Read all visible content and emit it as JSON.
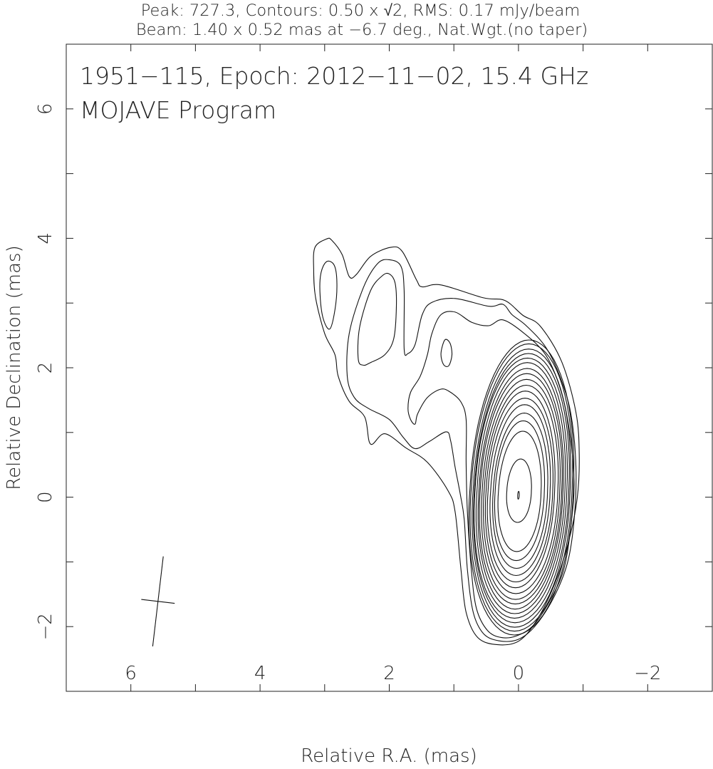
{
  "chart_data": {
    "type": "contour",
    "header_line1": "Peak: 727.3, Contours: 0.50 x √2, RMS: 0.17 mJy/beam",
    "header_line2": "Beam: 1.40 x 0.52 mas at −6.7 deg., Nat.Wgt.(no taper)",
    "title": "1951−115, Epoch: 2012−11−02, 15.4 GHz",
    "subtitle": "MOJAVE Program",
    "xlabel": "Relative R.A. (mas)",
    "ylabel": "Relative Declination (mas)",
    "xlim": [
      7,
      -3
    ],
    "ylim": [
      -3,
      7
    ],
    "xticks_labeled": [
      {
        "v": 6,
        "label": "6"
      },
      {
        "v": 4,
        "label": "4"
      },
      {
        "v": 2,
        "label": "2"
      },
      {
        "v": 0,
        "label": "0"
      },
      {
        "v": -2,
        "label": "−2"
      }
    ],
    "yticks_labeled": [
      {
        "v": 6,
        "label": "6"
      },
      {
        "v": 4,
        "label": "4"
      },
      {
        "v": 2,
        "label": "2"
      },
      {
        "v": 0,
        "label": "0"
      },
      {
        "v": -2,
        "label": "−2"
      }
    ],
    "minor_tick_step": 1,
    "peak": 727.3,
    "base_contour": 0.5,
    "contour_factor": "sqrt2",
    "rms": 0.17,
    "units": "mJy/beam",
    "beam": {
      "major": 1.4,
      "minor": 0.52,
      "pa_deg": -6.7,
      "center": [
        5.58,
        -1.61
      ]
    },
    "line_color": "#111111",
    "contours_polylines": [
      {
        "level": 0.5,
        "points": [
          [
            3.15,
            3.86
          ],
          [
            2.97,
            3.99
          ],
          [
            2.89,
            3.97
          ],
          [
            2.73,
            3.75
          ],
          [
            2.62,
            3.41
          ],
          [
            2.51,
            3.44
          ],
          [
            2.29,
            3.72
          ],
          [
            1.98,
            3.86
          ],
          [
            1.8,
            3.8
          ],
          [
            1.58,
            3.36
          ],
          [
            1.49,
            3.25
          ],
          [
            1.2,
            3.28
          ],
          [
            0.54,
            3.08
          ],
          [
            0.21,
            3.04
          ],
          [
            -0.07,
            2.81
          ],
          [
            -0.34,
            2.64
          ],
          [
            -0.67,
            2.09
          ],
          [
            -0.89,
            1.31
          ],
          [
            -0.94,
            0.65
          ],
          [
            -0.91,
            -0.01
          ],
          [
            -0.78,
            -0.67
          ],
          [
            -0.56,
            -1.34
          ],
          [
            -0.29,
            -1.89
          ],
          [
            -0.01,
            -2.22
          ],
          [
            0.32,
            -2.28
          ],
          [
            0.63,
            -2.17
          ],
          [
            0.81,
            -1.78
          ],
          [
            0.89,
            -1.12
          ],
          [
            0.98,
            -0.23
          ],
          [
            1.09,
            0.1
          ],
          [
            1.41,
            0.54
          ],
          [
            1.74,
            0.76
          ],
          [
            2.07,
            0.98
          ],
          [
            2.29,
            0.82
          ],
          [
            2.38,
            1.24
          ],
          [
            2.62,
            1.48
          ],
          [
            2.79,
            1.87
          ],
          [
            2.84,
            2.2
          ],
          [
            3.0,
            2.53
          ],
          [
            3.14,
            3.08
          ],
          [
            3.17,
            3.52
          ]
        ]
      },
      {
        "level": 0.71,
        "points": [
          [
            2.4,
            3.24
          ],
          [
            2.18,
            3.61
          ],
          [
            2.0,
            3.67
          ],
          [
            1.82,
            3.57
          ],
          [
            1.77,
            3.19
          ],
          [
            1.77,
            2.29
          ],
          [
            1.71,
            2.22
          ],
          [
            1.6,
            2.36
          ],
          [
            1.49,
            2.82
          ],
          [
            1.34,
            3.01
          ],
          [
            0.98,
            3.07
          ],
          [
            0.46,
            2.95
          ],
          [
            0.24,
            2.98
          ],
          [
            0.1,
            2.82
          ],
          [
            -0.12,
            2.65
          ],
          [
            -0.42,
            2.32
          ],
          [
            -0.64,
            1.87
          ],
          [
            -0.81,
            1.29
          ],
          [
            -0.89,
            0.46
          ],
          [
            -0.86,
            -0.36
          ],
          [
            -0.76,
            -1.01
          ],
          [
            -0.54,
            -1.56
          ],
          [
            -0.25,
            -2.0
          ],
          [
            0.01,
            -2.2
          ],
          [
            0.3,
            -2.22
          ],
          [
            0.54,
            -2.11
          ],
          [
            0.7,
            -1.78
          ],
          [
            0.79,
            -1.12
          ],
          [
            0.84,
            -0.34
          ],
          [
            0.9,
            0.04
          ],
          [
            0.98,
            0.46
          ],
          [
            1.05,
            0.87
          ],
          [
            1.12,
            1.01
          ],
          [
            1.38,
            0.86
          ],
          [
            1.6,
            0.75
          ],
          [
            1.78,
            0.92
          ],
          [
            2.0,
            1.2
          ],
          [
            2.32,
            1.37
          ],
          [
            2.54,
            1.54
          ],
          [
            2.65,
            1.87
          ],
          [
            2.62,
            2.53
          ]
        ]
      },
      {
        "level": 0.71,
        "points": [
          [
            2.97,
            3.64
          ],
          [
            2.85,
            3.58
          ],
          [
            2.81,
            3.3
          ],
          [
            2.84,
            2.9
          ],
          [
            2.92,
            2.6
          ],
          [
            3.02,
            2.75
          ],
          [
            3.07,
            3.1
          ],
          [
            3.06,
            3.45
          ]
        ]
      },
      {
        "level": 1.0,
        "points": [
          [
            2.48,
            2.13
          ],
          [
            2.46,
            2.62
          ],
          [
            2.29,
            3.19
          ],
          [
            2.11,
            3.42
          ],
          [
            2.0,
            3.45
          ],
          [
            1.91,
            3.31
          ],
          [
            1.89,
            2.95
          ],
          [
            1.93,
            2.45
          ],
          [
            2.07,
            2.2
          ],
          [
            2.29,
            2.08
          ],
          [
            2.4,
            2.04
          ]
        ]
      },
      {
        "level": 1.0,
        "points": [
          [
            1.71,
            1.37
          ],
          [
            1.67,
            1.62
          ],
          [
            1.52,
            1.87
          ],
          [
            1.41,
            2.2
          ],
          [
            1.34,
            2.53
          ],
          [
            1.2,
            2.82
          ],
          [
            0.98,
            2.86
          ],
          [
            0.72,
            2.7
          ],
          [
            0.46,
            2.65
          ],
          [
            0.24,
            2.74
          ],
          [
            -0.09,
            2.53
          ],
          [
            -0.42,
            2.2
          ],
          [
            -0.64,
            1.7
          ],
          [
            -0.78,
            1.08
          ],
          [
            -0.86,
            0.25
          ],
          [
            -0.81,
            -0.45
          ],
          [
            -0.7,
            -1.12
          ],
          [
            -0.48,
            -1.61
          ],
          [
            -0.23,
            -1.98
          ],
          [
            0.02,
            -2.14
          ],
          [
            0.26,
            -2.17
          ],
          [
            0.48,
            -2.06
          ],
          [
            0.65,
            -1.72
          ],
          [
            0.73,
            -1.12
          ],
          [
            0.79,
            -0.23
          ],
          [
            0.81,
            0.54
          ],
          [
            0.81,
            1.2
          ],
          [
            0.89,
            1.47
          ],
          [
            1.05,
            1.62
          ],
          [
            1.2,
            1.67
          ],
          [
            1.41,
            1.54
          ],
          [
            1.56,
            1.29
          ],
          [
            1.6,
            1.13
          ],
          [
            1.67,
            1.2
          ]
        ]
      },
      {
        "level": 1.0,
        "points": [
          [
            1.14,
            2.43
          ],
          [
            1.06,
            2.38
          ],
          [
            1.03,
            2.2
          ],
          [
            1.08,
            2.03
          ],
          [
            1.16,
            2.05
          ],
          [
            1.2,
            2.22
          ]
        ]
      }
    ],
    "contours_core_ellipses": [
      {
        "level": 1.41,
        "cx": -0.05,
        "cy": 0.15,
        "rx": 0.8,
        "ry": 2.28
      },
      {
        "level": 2.0,
        "cx": -0.05,
        "cy": 0.15,
        "rx": 0.78,
        "ry": 2.22
      },
      {
        "level": 2.83,
        "cx": -0.05,
        "cy": 0.14,
        "rx": 0.75,
        "ry": 2.15
      },
      {
        "level": 4.0,
        "cx": -0.05,
        "cy": 0.14,
        "rx": 0.73,
        "ry": 2.08
      },
      {
        "level": 5.66,
        "cx": -0.04,
        "cy": 0.14,
        "rx": 0.71,
        "ry": 2.01
      },
      {
        "level": 8.0,
        "cx": -0.04,
        "cy": 0.14,
        "rx": 0.68,
        "ry": 1.94
      },
      {
        "level": 11.3,
        "cx": -0.04,
        "cy": 0.13,
        "rx": 0.65,
        "ry": 1.86
      },
      {
        "level": 16.0,
        "cx": -0.04,
        "cy": 0.13,
        "rx": 0.63,
        "ry": 1.78
      },
      {
        "level": 22.6,
        "cx": -0.04,
        "cy": 0.12,
        "rx": 0.6,
        "ry": 1.7
      },
      {
        "level": 32.0,
        "cx": -0.04,
        "cy": 0.12,
        "rx": 0.57,
        "ry": 1.61
      },
      {
        "level": 45.3,
        "cx": -0.03,
        "cy": 0.12,
        "rx": 0.53,
        "ry": 1.52
      },
      {
        "level": 64.0,
        "cx": -0.03,
        "cy": 0.11,
        "rx": 0.5,
        "ry": 1.42
      },
      {
        "level": 90.5,
        "cx": -0.03,
        "cy": 0.11,
        "rx": 0.46,
        "ry": 1.32
      },
      {
        "level": 128,
        "cx": -0.03,
        "cy": 0.1,
        "rx": 0.42,
        "ry": 1.2
      },
      {
        "level": 181,
        "cx": -0.02,
        "cy": 0.1,
        "rx": 0.38,
        "ry": 1.08
      },
      {
        "level": 256,
        "cx": -0.02,
        "cy": 0.09,
        "rx": 0.33,
        "ry": 0.93
      },
      {
        "level": 362,
        "cx": -0.01,
        "cy": 0.1,
        "rx": 0.19,
        "ry": 0.49
      },
      {
        "level": 512,
        "cx": 0.0,
        "cy": 0.03,
        "rx": 0.012,
        "ry": 0.06
      }
    ]
  }
}
